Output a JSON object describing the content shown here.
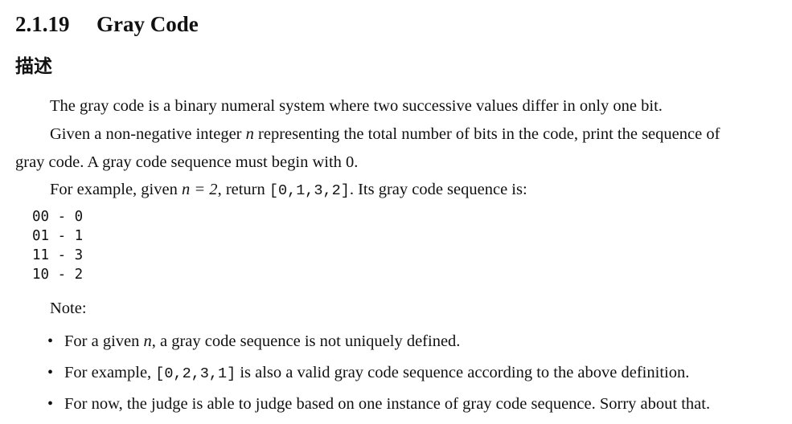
{
  "heading": {
    "number": "2.1.19",
    "title": "Gray Code"
  },
  "subheading": "描述",
  "para1": "The gray code is a binary numeral system where two successive values differ in only one bit.",
  "para2": {
    "before_n": "Given a non-negative integer ",
    "n": "n",
    "after_n_line1": " representing the total number of bits in the code, print the sequence of",
    "line2": "gray code. A gray code sequence must begin with 0."
  },
  "para3": {
    "before": "For example, given ",
    "eq": "n = 2",
    "mid": ", return ",
    "code": "[0,1,3,2]",
    "after": ". Its gray code sequence is:"
  },
  "code_lines": [
    "00 - 0",
    "01 - 1",
    "11 - 3",
    "10 - 2"
  ],
  "note_label": "Note:",
  "notes": [
    {
      "before": "For a given ",
      "math": "n",
      "after": ", a gray code sequence is not uniquely defined."
    },
    {
      "before": "For example, ",
      "code": "[0,2,3,1]",
      "after": " is also a valid gray code sequence according to the above definition."
    },
    {
      "text": "For now, the judge is able to judge based on one instance of gray code sequence. Sorry about that."
    }
  ]
}
